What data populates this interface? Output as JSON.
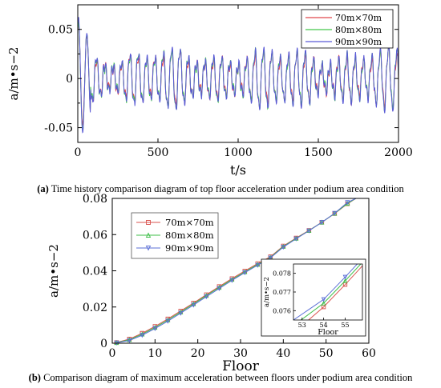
{
  "captions": {
    "a_tag": "(a)",
    "a_text": " Time history comparison diagram of top floor acceleration under podium area condition",
    "b_tag": "(b)",
    "b_text": " Comparison diagram of maximum acceleration between floors under podium area condition"
  },
  "chart_data": [
    {
      "type": "line",
      "title": "",
      "xlabel": "t/s",
      "ylabel": "a/m•s−2",
      "xlim": [
        0,
        2000
      ],
      "ylim": [
        -0.065,
        0.075
      ],
      "xticks": [
        "0",
        "500",
        "1000",
        "1500",
        "2000"
      ],
      "xtick_values": [
        0,
        500,
        1000,
        1500,
        2000
      ],
      "yticks": [
        "-0.05",
        "0",
        "0.05"
      ],
      "ytick_values": [
        -0.05,
        0,
        0.05
      ],
      "grid": false,
      "legend_position": "top-right",
      "series": [
        {
          "name": "70m×70m",
          "color": "#e0474c"
        },
        {
          "name": "80m×80m",
          "color": "#43c84a"
        },
        {
          "name": "90m×90m",
          "color": "#5a5ad6"
        }
      ],
      "description_of_signal": {
        "initial_peak": 0.06,
        "initial_trough": -0.058,
        "typical_amplitude": 0.028,
        "dominant_period_s": 52,
        "duration_s": 2000
      }
    },
    {
      "type": "line",
      "title": "",
      "xlabel": "Floor",
      "ylabel": "a/m•s−2",
      "xlim": [
        0,
        60
      ],
      "ylim": [
        0,
        0.08
      ],
      "xticks": [
        "0",
        "10",
        "20",
        "30",
        "40",
        "50",
        "60"
      ],
      "xtick_values": [
        0,
        10,
        20,
        30,
        40,
        50,
        60
      ],
      "yticks": [
        "0",
        "0.02",
        "0.04",
        "0.06",
        "0.08"
      ],
      "ytick_values": [
        0,
        0.02,
        0.04,
        0.06,
        0.08
      ],
      "grid": false,
      "legend_position": "top-left",
      "x": [
        1,
        4,
        7,
        10,
        13,
        16,
        19,
        22,
        25,
        28,
        31,
        34,
        37,
        40,
        43,
        46,
        49,
        52,
        55
      ],
      "series": [
        {
          "name": "70m×70m",
          "color": "#d9534f",
          "marker": "square",
          "values": [
            0.0004,
            0.0023,
            0.0055,
            0.0093,
            0.0134,
            0.0178,
            0.0222,
            0.0268,
            0.0313,
            0.0357,
            0.0399,
            0.044,
            0.0478,
            0.0537,
            0.0581,
            0.0623,
            0.0668,
            0.0716,
            0.077
          ]
        },
        {
          "name": "80m×80m",
          "color": "#3fbf4a",
          "marker": "triangle-up",
          "values": [
            0.0003,
            0.0019,
            0.005,
            0.0087,
            0.0128,
            0.0172,
            0.0217,
            0.0263,
            0.0308,
            0.0352,
            0.0394,
            0.0435,
            0.0474,
            0.0534,
            0.0579,
            0.0622,
            0.0668,
            0.0717,
            0.0772
          ]
        },
        {
          "name": "90m×90m",
          "color": "#5b6fd6",
          "marker": "triangle-down",
          "values": [
            0.0002,
            0.0015,
            0.0044,
            0.0081,
            0.0122,
            0.0166,
            0.0211,
            0.0257,
            0.0302,
            0.0347,
            0.039,
            0.0431,
            0.0471,
            0.0531,
            0.0577,
            0.0621,
            0.0668,
            0.0718,
            0.0778
          ]
        }
      ],
      "inset": {
        "xlabel": "Floor",
        "ylabel": "a/m•s−2",
        "xlim": [
          52.6,
          55.8
        ],
        "ylim": [
          0.0755,
          0.0785
        ],
        "xticks": [
          "53",
          "54",
          "55"
        ],
        "xtick_values": [
          53,
          54,
          55
        ],
        "yticks": [
          "0.076",
          "0.077",
          "0.078"
        ],
        "ytick_values": [
          0.076,
          0.077,
          0.078
        ],
        "x": [
          52.6,
          54,
          55,
          55.8
        ],
        "series": [
          {
            "name": "70m×70m",
            "values": [
              0.0748,
              0.0762,
              0.0774,
              0.0784
            ]
          },
          {
            "name": "80m×80m",
            "values": [
              0.0752,
              0.0764,
              0.0776,
              0.0786
            ]
          },
          {
            "name": "90m×90m",
            "values": [
              0.0755,
              0.0766,
              0.0778,
              0.0788
            ]
          }
        ]
      }
    }
  ]
}
